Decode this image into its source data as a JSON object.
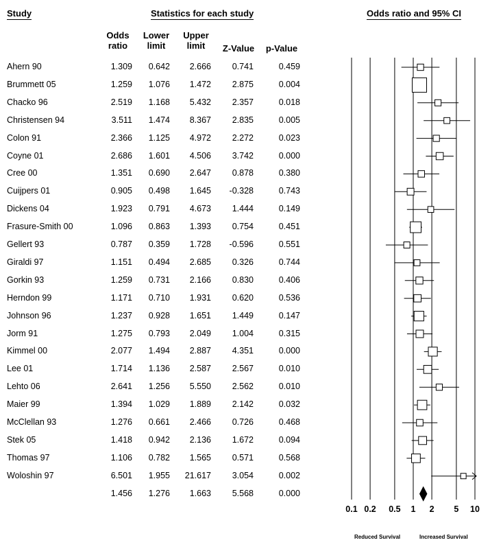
{
  "headers": {
    "study": "Study",
    "stats": "Statistics for each study",
    "plot": "Odds ratio and 95% CI"
  },
  "columns": {
    "odds": [
      "Odds",
      "ratio"
    ],
    "lower": [
      "Lower",
      "limit"
    ],
    "upper": [
      "Upper",
      "limit"
    ],
    "z": "Z-Value",
    "p": "p-Value"
  },
  "axis_labels": {
    "reduced": "Reduced Survival",
    "increased": "Increased Survival"
  },
  "chart_data": {
    "type": "forest",
    "x_scale": "log",
    "xlim": [
      0.1,
      10
    ],
    "x_ticks": [
      {
        "value": 0.1,
        "label": "0.1"
      },
      {
        "value": 0.2,
        "label": "0.2"
      },
      {
        "value": 0.5,
        "label": "0.5"
      },
      {
        "value": 1,
        "label": "1"
      },
      {
        "value": 2,
        "label": "2"
      },
      {
        "value": 5,
        "label": "5"
      },
      {
        "value": 10,
        "label": "10"
      }
    ],
    "studies": [
      {
        "name": "Ahern 90",
        "or": "1.309",
        "lower": "0.642",
        "upper": "2.666",
        "z": "0.741",
        "p": "0.459"
      },
      {
        "name": "Brummett 05",
        "or": "1.259",
        "lower": "1.076",
        "upper": "1.472",
        "z": "2.875",
        "p": "0.004"
      },
      {
        "name": "Chacko 96",
        "or": "2.519",
        "lower": "1.168",
        "upper": "5.432",
        "z": "2.357",
        "p": "0.018"
      },
      {
        "name": "Christensen 94",
        "or": "3.511",
        "lower": "1.474",
        "upper": "8.367",
        "z": "2.835",
        "p": "0.005"
      },
      {
        "name": "Colon 91",
        "or": "2.366",
        "lower": "1.125",
        "upper": "4.972",
        "z": "2.272",
        "p": "0.023"
      },
      {
        "name": "Coyne 01",
        "or": "2.686",
        "lower": "1.601",
        "upper": "4.506",
        "z": "3.742",
        "p": "0.000"
      },
      {
        "name": "Cree 00",
        "or": "1.351",
        "lower": "0.690",
        "upper": "2.647",
        "z": "0.878",
        "p": "0.380"
      },
      {
        "name": "Cuijpers 01",
        "or": "0.905",
        "lower": "0.498",
        "upper": "1.645",
        "z": "-0.328",
        "p": "0.743"
      },
      {
        "name": "Dickens 04",
        "or": "1.923",
        "lower": "0.791",
        "upper": "4.673",
        "z": "1.444",
        "p": "0.149"
      },
      {
        "name": "Frasure-Smith 00",
        "or": "1.096",
        "lower": "0.863",
        "upper": "1.393",
        "z": "0.754",
        "p": "0.451"
      },
      {
        "name": "Gellert 93",
        "or": "0.787",
        "lower": "0.359",
        "upper": "1.728",
        "z": "-0.596",
        "p": "0.551"
      },
      {
        "name": "Giraldi 97",
        "or": "1.151",
        "lower": "0.494",
        "upper": "2.685",
        "z": "0.326",
        "p": "0.744"
      },
      {
        "name": "Gorkin 93",
        "or": "1.259",
        "lower": "0.731",
        "upper": "2.166",
        "z": "0.830",
        "p": "0.406"
      },
      {
        "name": "Herndon 99",
        "or": "1.171",
        "lower": "0.710",
        "upper": "1.931",
        "z": "0.620",
        "p": "0.536"
      },
      {
        "name": "Johnson 96",
        "or": "1.237",
        "lower": "0.928",
        "upper": "1.651",
        "z": "1.449",
        "p": "0.147"
      },
      {
        "name": "Jorm 91",
        "or": "1.275",
        "lower": "0.793",
        "upper": "2.049",
        "z": "1.004",
        "p": "0.315"
      },
      {
        "name": "Kimmel 00",
        "or": "2.077",
        "lower": "1.494",
        "upper": "2.887",
        "z": "4.351",
        "p": "0.000"
      },
      {
        "name": "Lee 01",
        "or": "1.714",
        "lower": "1.136",
        "upper": "2.587",
        "z": "2.567",
        "p": "0.010"
      },
      {
        "name": "Lehto 06",
        "or": "2.641",
        "lower": "1.256",
        "upper": "5.550",
        "z": "2.562",
        "p": "0.010"
      },
      {
        "name": "Maier 99",
        "or": "1.394",
        "lower": "1.029",
        "upper": "1.889",
        "z": "2.142",
        "p": "0.032"
      },
      {
        "name": "McClellan 93",
        "or": "1.276",
        "lower": "0.661",
        "upper": "2.466",
        "z": "0.726",
        "p": "0.468"
      },
      {
        "name": "Stek 05",
        "or": "1.418",
        "lower": "0.942",
        "upper": "2.136",
        "z": "1.672",
        "p": "0.094"
      },
      {
        "name": "Thomas 97",
        "or": "1.106",
        "lower": "0.782",
        "upper": "1.565",
        "z": "0.571",
        "p": "0.568"
      },
      {
        "name": "Woloshin 97",
        "or": "6.501",
        "lower": "1.955",
        "upper": "21.617",
        "z": "3.054",
        "p": "0.002"
      }
    ],
    "summary": {
      "or": "1.456",
      "lower": "1.276",
      "upper": "1.663",
      "z": "5.568",
      "p": "0.000"
    }
  }
}
